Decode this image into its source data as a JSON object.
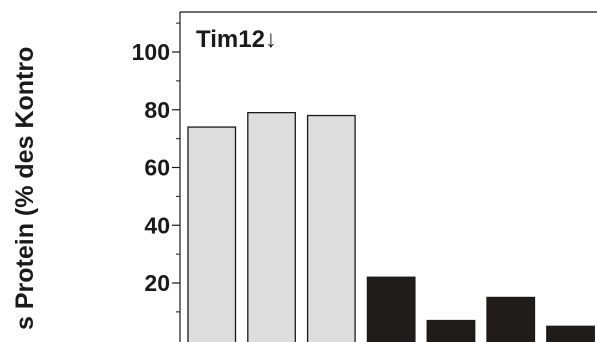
{
  "chart_data": {
    "type": "bar",
    "title": "",
    "xlabel": "",
    "ylabel": "s Protein (% des Kontro",
    "annotation": "Tim12↓",
    "yticks": [
      20,
      40,
      60,
      80,
      100
    ],
    "ylim": [
      0,
      115
    ],
    "grid": false,
    "series": [
      {
        "values": [
          74,
          79,
          78,
          22,
          7,
          15,
          5
        ]
      }
    ],
    "bar_colors": [
      "#dddddd",
      "#dddddd",
      "#dddddd",
      "#201c19",
      "#201c19",
      "#201c19",
      "#201c19"
    ],
    "edge_color": "#1a1a1a"
  }
}
